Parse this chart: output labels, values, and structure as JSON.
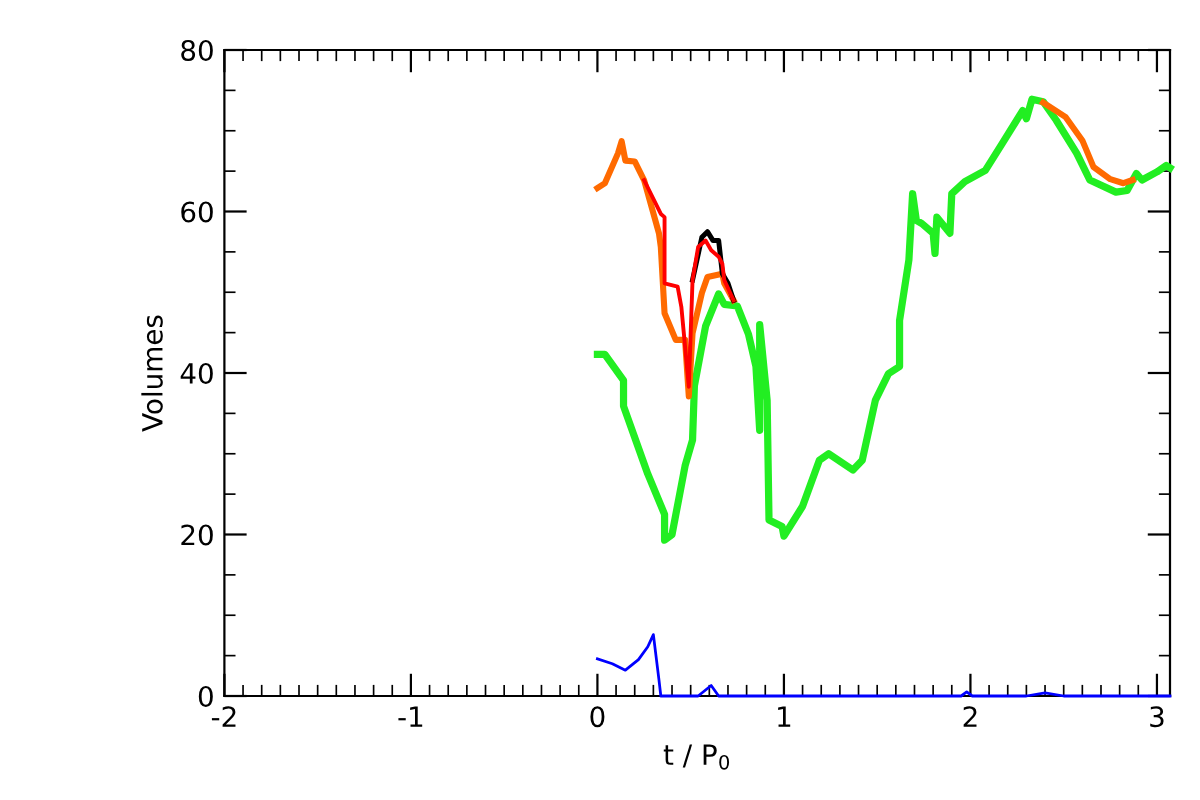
{
  "chart_data": {
    "type": "line",
    "xlabel": "t / P$_{0}$",
    "ylabel": "Volumes",
    "xlim": [
      -2,
      3.07
    ],
    "ylim": [
      0,
      80
    ],
    "xticks": [
      -2,
      -1,
      0,
      1,
      2,
      3
    ],
    "yticks": [
      0,
      20,
      40,
      60,
      80
    ],
    "grid": false,
    "legend": false,
    "marker": "none",
    "line_style": "solid",
    "series": [
      {
        "color": "#22ee22",
        "x": [
          0,
          0.04,
          0.14,
          0.14,
          0.27,
          0.36,
          0.36,
          0.4,
          0.47,
          0.51,
          0.52,
          0.58,
          0.65,
          0.68,
          0.75,
          0.81,
          0.85,
          0.87,
          0.87,
          0.91,
          0.92,
          0.99,
          1.0,
          1.1,
          1.19,
          1.24,
          1.37,
          1.42,
          1.49,
          1.56,
          1.62,
          1.62,
          1.67,
          1.69,
          1.71,
          1.74,
          1.8,
          1.81,
          1.82,
          1.89,
          1.9,
          1.97,
          2.08,
          2.17,
          2.28,
          2.3,
          2.33,
          2.39,
          2.46,
          2.57,
          2.64,
          2.78,
          2.84,
          2.89,
          2.92,
          3.0,
          3.05,
          3.07
        ],
        "values": [
          42.3,
          42.3,
          39.1,
          35.9,
          27.5,
          22.5,
          19.3,
          20,
          28.5,
          31.7,
          38.4,
          45.8,
          49.8,
          48.5,
          48.3,
          44.8,
          40.8,
          32.9,
          46,
          36.6,
          21.8,
          21,
          19.8,
          23.5,
          29.2,
          30,
          28,
          29.2,
          36.6,
          39.9,
          40.8,
          46.5,
          54,
          62.2,
          58.9,
          58.5,
          57.3,
          54.8,
          59.3,
          57.3,
          62.2,
          63.7,
          65.1,
          68.4,
          72.5,
          71.5,
          73.9,
          73.6,
          71.3,
          67.2,
          63.9,
          62.4,
          62.6,
          64.7,
          63.9,
          64.9,
          65.7,
          65.4
        ]
      },
      {
        "color": "#ff6a00",
        "x": [
          0,
          0.04,
          0.11,
          0.13,
          0.15,
          0.2,
          0.25,
          0.29,
          0.33,
          0.34,
          0.36,
          0.42,
          0.47,
          0.49,
          0.51,
          0.56,
          0.59,
          0.67,
          0.68,
          0.73,
          1.5,
          2.39,
          2.51,
          2.6,
          2.66,
          2.75,
          2.82,
          2.87
        ],
        "values": [
          62.9,
          63.5,
          67.2,
          68.7,
          66.3,
          66.2,
          63.9,
          60.6,
          57.3,
          55.6,
          47.4,
          44.1,
          44.1,
          37.1,
          44.9,
          49.9,
          51.9,
          52.3,
          51.1,
          49,
          null,
          73.5,
          71.7,
          68.8,
          65.5,
          64,
          63.5,
          63.9
        ]
      },
      {
        "color": "#000000",
        "x": [
          0.51,
          0.56,
          0.59,
          0.62,
          0.65,
          0.67,
          0.7,
          0.73
        ],
        "values": [
          51.5,
          56.8,
          57.5,
          56.4,
          56.4,
          52.3,
          51.1,
          49
        ]
      },
      {
        "color": "#ff0000",
        "x": [
          0.25,
          0.34,
          0.36,
          0.36,
          0.43,
          0.45,
          0.49,
          0.51,
          0.54,
          0.58,
          0.61,
          0.65,
          0.67,
          0.68,
          0.73
        ],
        "values": [
          63.9,
          59.7,
          59.3,
          51.1,
          50.7,
          48.2,
          38.3,
          51.5,
          55.6,
          56.4,
          55.2,
          54.4,
          53.5,
          51.5,
          49
        ]
      },
      {
        "color": "#0000ff",
        "x": [
          0,
          0.08,
          0.15,
          0.22,
          0.27,
          0.3,
          0.33,
          0.34,
          0.54,
          0.61,
          0.65,
          1.95,
          1.98,
          2.01,
          2.3,
          2.4,
          2.5,
          3.07
        ],
        "values": [
          4.6,
          4.0,
          3.2,
          4.5,
          6.1,
          7.6,
          2,
          0,
          0,
          1.3,
          0,
          0,
          0.5,
          0,
          0,
          0.4,
          0,
          0
        ]
      }
    ]
  }
}
